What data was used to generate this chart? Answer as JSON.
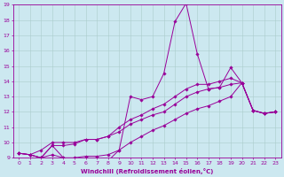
{
  "xlabel": "Windchill (Refroidissement éolien,°C)",
  "bg_color": "#cce8f0",
  "line_color": "#990099",
  "grid_color": "#aacccc",
  "xlim": [
    -0.5,
    23.5
  ],
  "ylim": [
    9,
    19
  ],
  "xticks": [
    0,
    1,
    2,
    3,
    4,
    5,
    6,
    7,
    8,
    9,
    10,
    11,
    12,
    13,
    14,
    15,
    16,
    17,
    18,
    19,
    20,
    21,
    22,
    23
  ],
  "yticks": [
    9,
    10,
    11,
    12,
    13,
    14,
    15,
    16,
    17,
    18,
    19
  ],
  "series": [
    [
      9.3,
      9.2,
      9.0,
      9.8,
      9.0,
      8.9,
      8.9,
      8.8,
      8.8,
      9.5,
      13.0,
      12.8,
      13.0,
      14.5,
      17.9,
      19.1,
      15.8,
      13.5,
      13.6,
      14.9,
      13.9,
      12.1,
      11.9,
      12.0
    ],
    [
      9.3,
      9.2,
      9.5,
      10.0,
      10.0,
      10.0,
      10.2,
      10.2,
      10.4,
      11.0,
      11.5,
      11.8,
      12.2,
      12.5,
      13.0,
      13.5,
      13.8,
      13.8,
      14.0,
      14.2,
      13.9,
      12.1,
      11.9,
      12.0
    ],
    [
      9.3,
      9.2,
      9.0,
      9.8,
      9.8,
      9.9,
      10.2,
      10.2,
      10.4,
      10.7,
      11.2,
      11.5,
      11.8,
      12.0,
      12.5,
      13.0,
      13.3,
      13.5,
      13.6,
      13.8,
      13.9,
      12.1,
      11.9,
      12.0
    ],
    [
      9.3,
      9.2,
      9.0,
      9.2,
      9.0,
      9.0,
      9.1,
      9.1,
      9.2,
      9.5,
      10.0,
      10.4,
      10.8,
      11.1,
      11.5,
      11.9,
      12.2,
      12.4,
      12.7,
      13.0,
      13.9,
      12.1,
      11.9,
      12.0
    ]
  ],
  "tick_fontsize": 4.5,
  "xlabel_fontsize": 5.0
}
